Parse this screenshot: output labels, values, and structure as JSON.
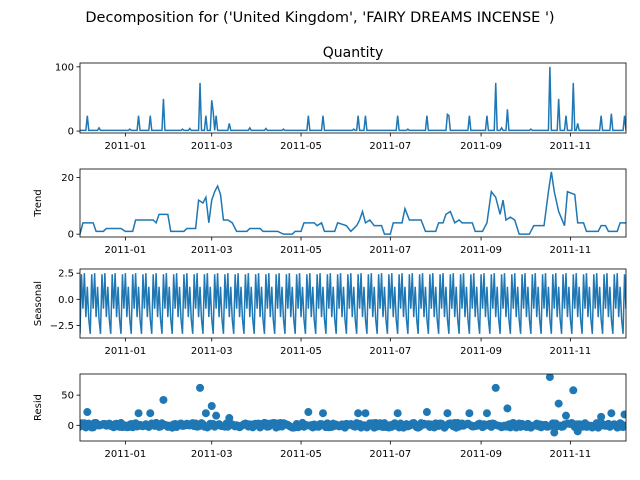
{
  "figure": {
    "suptitle": "Decomposition for ('United Kingdom', 'FAIRY DREAMS INCENSE ')"
  },
  "chart_data": [
    {
      "type": "line",
      "id": "observed",
      "title": "Quantity",
      "ylabel": "",
      "color": "#1f77b4",
      "xlim": [
        "2010-12-01",
        "2011-12-09"
      ],
      "ylim": [
        -3,
        106
      ],
      "yticks": [
        0,
        100
      ],
      "ytick_labels": [
        "0",
        "100"
      ],
      "x_ticks": [
        "2011-01-01",
        "2011-03-01",
        "2011-05-01",
        "2011-07-01",
        "2011-09-01",
        "2011-11-01"
      ],
      "x_tick_labels": [
        "2011-01",
        "2011-03",
        "2011-05",
        "2011-07",
        "2011-09",
        "2011-11"
      ],
      "baseline": 1,
      "spikes": [
        [
          "2010-12-06",
          24
        ],
        [
          "2010-12-14",
          5
        ],
        [
          "2011-01-04",
          3
        ],
        [
          "2011-01-10",
          24
        ],
        [
          "2011-01-18",
          24
        ],
        [
          "2011-01-27",
          50
        ],
        [
          "2011-02-09",
          3
        ],
        [
          "2011-02-14",
          4
        ],
        [
          "2011-02-21",
          75
        ],
        [
          "2011-02-25",
          24
        ],
        [
          "2011-03-01",
          48
        ],
        [
          "2011-03-02",
          30
        ],
        [
          "2011-03-04",
          24
        ],
        [
          "2011-03-13",
          12
        ],
        [
          "2011-03-27",
          5
        ],
        [
          "2011-04-07",
          4
        ],
        [
          "2011-04-19",
          3
        ],
        [
          "2011-05-06",
          24
        ],
        [
          "2011-05-16",
          24
        ],
        [
          "2011-06-06",
          3
        ],
        [
          "2011-06-09",
          24
        ],
        [
          "2011-06-14",
          24
        ],
        [
          "2011-07-06",
          24
        ],
        [
          "2011-07-13",
          3
        ],
        [
          "2011-07-26",
          24
        ],
        [
          "2011-08-09",
          26
        ],
        [
          "2011-08-10",
          24
        ],
        [
          "2011-08-24",
          24
        ],
        [
          "2011-09-05",
          24
        ],
        [
          "2011-09-11",
          75
        ],
        [
          "2011-09-15",
          5
        ],
        [
          "2011-09-19",
          34
        ],
        [
          "2011-10-05",
          3
        ],
        [
          "2011-10-18",
          100
        ],
        [
          "2011-10-24",
          50
        ],
        [
          "2011-10-29",
          24
        ],
        [
          "2011-11-03",
          75
        ],
        [
          "2011-11-06",
          12
        ],
        [
          "2011-11-22",
          24
        ],
        [
          "2011-11-29",
          27
        ],
        [
          "2011-12-08",
          24
        ]
      ]
    },
    {
      "type": "line",
      "id": "trend",
      "ylabel": "Trend",
      "color": "#1f77b4",
      "xlim": [
        "2010-12-01",
        "2011-12-09"
      ],
      "ylim": [
        -1,
        23
      ],
      "yticks": [
        0,
        20
      ],
      "ytick_labels": [
        "0",
        "20"
      ],
      "x_ticks": [
        "2011-01-01",
        "2011-03-01",
        "2011-05-01",
        "2011-07-01",
        "2011-09-01",
        "2011-11-01"
      ],
      "x_tick_labels": [
        "2011-01",
        "2011-03",
        "2011-05",
        "2011-07",
        "2011-09",
        "2011-11"
      ],
      "points": [
        [
          "2010-12-01",
          0
        ],
        [
          "2010-12-03",
          4
        ],
        [
          "2010-12-10",
          4
        ],
        [
          "2010-12-12",
          1
        ],
        [
          "2010-12-17",
          1
        ],
        [
          "2010-12-19",
          2
        ],
        [
          "2010-12-29",
          2
        ],
        [
          "2011-01-01",
          1
        ],
        [
          "2011-01-06",
          1
        ],
        [
          "2011-01-08",
          5
        ],
        [
          "2011-01-20",
          5
        ],
        [
          "2011-01-22",
          4
        ],
        [
          "2011-01-24",
          7
        ],
        [
          "2011-01-30",
          7
        ],
        [
          "2011-02-01",
          1
        ],
        [
          "2011-02-10",
          1
        ],
        [
          "2011-02-12",
          2
        ],
        [
          "2011-02-18",
          2
        ],
        [
          "2011-02-20",
          12
        ],
        [
          "2011-02-23",
          11
        ],
        [
          "2011-02-25",
          13
        ],
        [
          "2011-02-27",
          4
        ],
        [
          "2011-03-01",
          12
        ],
        [
          "2011-03-03",
          15
        ],
        [
          "2011-03-05",
          17
        ],
        [
          "2011-03-07",
          14
        ],
        [
          "2011-03-09",
          5
        ],
        [
          "2011-03-12",
          5
        ],
        [
          "2011-03-15",
          4
        ],
        [
          "2011-03-18",
          1
        ],
        [
          "2011-03-25",
          1
        ],
        [
          "2011-03-27",
          2
        ],
        [
          "2011-04-03",
          2
        ],
        [
          "2011-04-05",
          1
        ],
        [
          "2011-04-15",
          1
        ],
        [
          "2011-04-19",
          0
        ],
        [
          "2011-04-25",
          0
        ],
        [
          "2011-04-27",
          1
        ],
        [
          "2011-05-01",
          1
        ],
        [
          "2011-05-03",
          4
        ],
        [
          "2011-05-10",
          4
        ],
        [
          "2011-05-12",
          3
        ],
        [
          "2011-05-15",
          4
        ],
        [
          "2011-05-17",
          1
        ],
        [
          "2011-05-24",
          1
        ],
        [
          "2011-05-26",
          4
        ],
        [
          "2011-06-01",
          3
        ],
        [
          "2011-06-04",
          1
        ],
        [
          "2011-06-08",
          3
        ],
        [
          "2011-06-10",
          5
        ],
        [
          "2011-06-12",
          8
        ],
        [
          "2011-06-14",
          4
        ],
        [
          "2011-06-17",
          5
        ],
        [
          "2011-06-20",
          3
        ],
        [
          "2011-06-25",
          3
        ],
        [
          "2011-06-27",
          0
        ],
        [
          "2011-07-01",
          0
        ],
        [
          "2011-07-03",
          4
        ],
        [
          "2011-07-09",
          4
        ],
        [
          "2011-07-11",
          9
        ],
        [
          "2011-07-14",
          5
        ],
        [
          "2011-07-22",
          5
        ],
        [
          "2011-07-25",
          1
        ],
        [
          "2011-08-01",
          1
        ],
        [
          "2011-08-03",
          4
        ],
        [
          "2011-08-06",
          4
        ],
        [
          "2011-08-08",
          7
        ],
        [
          "2011-08-11",
          8
        ],
        [
          "2011-08-14",
          4
        ],
        [
          "2011-08-17",
          5
        ],
        [
          "2011-08-19",
          4
        ],
        [
          "2011-08-26",
          4
        ],
        [
          "2011-08-28",
          1
        ],
        [
          "2011-09-02",
          1
        ],
        [
          "2011-09-05",
          4
        ],
        [
          "2011-09-08",
          15
        ],
        [
          "2011-09-11",
          13
        ],
        [
          "2011-09-14",
          7
        ],
        [
          "2011-09-16",
          12
        ],
        [
          "2011-09-18",
          5
        ],
        [
          "2011-09-21",
          6
        ],
        [
          "2011-09-24",
          5
        ],
        [
          "2011-09-27",
          0
        ],
        [
          "2011-10-04",
          0
        ],
        [
          "2011-10-07",
          3
        ],
        [
          "2011-10-14",
          3
        ],
        [
          "2011-10-17",
          15
        ],
        [
          "2011-10-19",
          22
        ],
        [
          "2011-10-21",
          15
        ],
        [
          "2011-10-24",
          8
        ],
        [
          "2011-10-28",
          3
        ],
        [
          "2011-10-30",
          15
        ],
        [
          "2011-11-04",
          14
        ],
        [
          "2011-11-06",
          4
        ],
        [
          "2011-11-10",
          4
        ],
        [
          "2011-11-12",
          1
        ],
        [
          "2011-11-20",
          1
        ],
        [
          "2011-11-22",
          3
        ],
        [
          "2011-11-25",
          3
        ],
        [
          "2011-11-27",
          1
        ],
        [
          "2011-12-03",
          1
        ],
        [
          "2011-12-05",
          4
        ],
        [
          "2011-12-09",
          4
        ]
      ]
    },
    {
      "type": "line",
      "id": "seasonal",
      "ylabel": "Seasonal",
      "color": "#1f77b4",
      "xlim": [
        "2010-12-01",
        "2011-12-09"
      ],
      "ylim": [
        -3.7,
        2.9
      ],
      "yticks": [
        2.5,
        0.0,
        -2.5
      ],
      "ytick_labels": [
        "2.5",
        "0.0",
        "−2.5"
      ],
      "x_ticks": [
        "2011-01-01",
        "2011-03-01",
        "2011-05-01",
        "2011-07-01",
        "2011-09-01",
        "2011-11-01"
      ],
      "x_tick_labels": [
        "2011-01",
        "2011-03",
        "2011-05",
        "2011-07",
        "2011-09",
        "2011-11"
      ],
      "period_days": 7,
      "weekly_pattern": [
        -3.3,
        2.4,
        -0.9,
        2.5,
        -1.7,
        1.2,
        -1.9
      ]
    },
    {
      "type": "scatter",
      "id": "resid",
      "ylabel": "Resid",
      "color": "#1f77b4",
      "xlim": [
        "2010-12-01",
        "2011-12-09"
      ],
      "ylim": [
        -26,
        85
      ],
      "yticks": [
        0,
        50
      ],
      "ytick_labels": [
        "0",
        "50"
      ],
      "x_ticks": [
        "2011-01-01",
        "2011-03-01",
        "2011-05-01",
        "2011-07-01",
        "2011-09-01",
        "2011-11-01"
      ],
      "x_tick_labels": [
        "2011-01",
        "2011-03",
        "2011-05",
        "2011-07",
        "2011-09",
        "2011-11"
      ],
      "baseline_noise": 4,
      "outliers": [
        [
          "2010-12-06",
          22
        ],
        [
          "2011-01-10",
          20
        ],
        [
          "2011-01-18",
          20
        ],
        [
          "2011-01-27",
          42
        ],
        [
          "2011-02-21",
          62
        ],
        [
          "2011-02-25",
          20
        ],
        [
          "2011-03-01",
          32
        ],
        [
          "2011-03-04",
          16
        ],
        [
          "2011-03-13",
          12
        ],
        [
          "2011-05-06",
          22
        ],
        [
          "2011-05-16",
          20
        ],
        [
          "2011-06-09",
          20
        ],
        [
          "2011-06-14",
          20
        ],
        [
          "2011-07-06",
          20
        ],
        [
          "2011-07-26",
          22
        ],
        [
          "2011-08-09",
          20
        ],
        [
          "2011-08-24",
          20
        ],
        [
          "2011-09-05",
          20
        ],
        [
          "2011-09-11",
          62
        ],
        [
          "2011-09-19",
          28
        ],
        [
          "2011-10-18",
          80
        ],
        [
          "2011-10-21",
          -12
        ],
        [
          "2011-10-24",
          36
        ],
        [
          "2011-10-29",
          16
        ],
        [
          "2011-11-03",
          58
        ],
        [
          "2011-11-06",
          -10
        ],
        [
          "2011-11-22",
          14
        ],
        [
          "2011-11-29",
          20
        ],
        [
          "2011-12-08",
          18
        ]
      ]
    }
  ]
}
